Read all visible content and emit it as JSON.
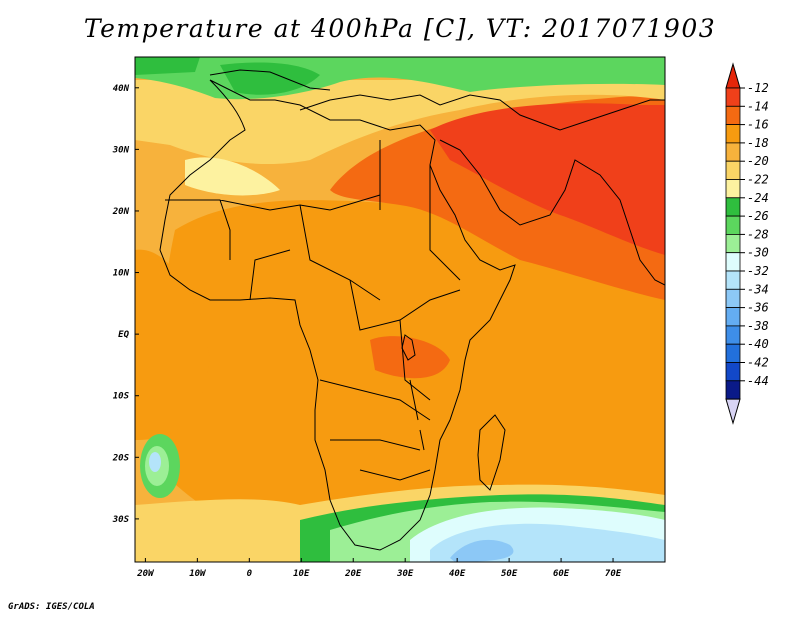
{
  "title": "Temperature at 400hPa [C], VT: 2017071903",
  "credit": "GrADS: IGES/COLA",
  "map": {
    "lon_range": [
      -22,
      80
    ],
    "lat_range": [
      -37,
      45
    ],
    "lon_ticks": [
      {
        "value": -20,
        "label": "20W"
      },
      {
        "value": -10,
        "label": "10W"
      },
      {
        "value": 0,
        "label": "0"
      },
      {
        "value": 10,
        "label": "10E"
      },
      {
        "value": 20,
        "label": "20E"
      },
      {
        "value": 30,
        "label": "30E"
      },
      {
        "value": 40,
        "label": "40E"
      },
      {
        "value": 50,
        "label": "50E"
      },
      {
        "value": 60,
        "label": "60E"
      },
      {
        "value": 70,
        "label": "70E"
      }
    ],
    "lat_ticks": [
      {
        "value": 40,
        "label": "40N"
      },
      {
        "value": 30,
        "label": "30N"
      },
      {
        "value": 20,
        "label": "20N"
      },
      {
        "value": 10,
        "label": "10N"
      },
      {
        "value": 0,
        "label": "EQ"
      },
      {
        "value": -10,
        "label": "10S"
      },
      {
        "value": -20,
        "label": "20S"
      },
      {
        "value": -30,
        "label": "30S"
      }
    ]
  },
  "colorbar": {
    "labels": [
      "-12",
      "-14",
      "-16",
      "-18",
      "-20",
      "-22",
      "-24",
      "-26",
      "-28",
      "-30",
      "-32",
      "-34",
      "-36",
      "-38",
      "-40",
      "-42",
      "-44"
    ],
    "colors": [
      "#f0401a",
      "#f46a12",
      "#f79b10",
      "#f7b23c",
      "#fad566",
      "#fdf2a0",
      "#2fbe3e",
      "#5cd65e",
      "#9cef96",
      "#defdfd",
      "#b4e4fa",
      "#8cc8f6",
      "#64adf2",
      "#3e8ee8",
      "#2270dc",
      "#1248c8",
      "#0a1a88"
    ],
    "top_arrow_color": "#e5260a",
    "bottom_arrow_color": "#d8d4f4"
  },
  "fields": [
    {
      "name": "warm-region-orange",
      "color": "#f79b10"
    },
    {
      "name": "warmest-region-red",
      "color": "#f0401a"
    },
    {
      "name": "warm-region-light-orange",
      "color": "#f7b23c"
    },
    {
      "name": "cool-region-yellow",
      "color": "#fad566"
    },
    {
      "name": "cold-region-green",
      "color": "#2fbe3e"
    },
    {
      "name": "cold-region-blue",
      "color": "#8cc8f6"
    }
  ]
}
